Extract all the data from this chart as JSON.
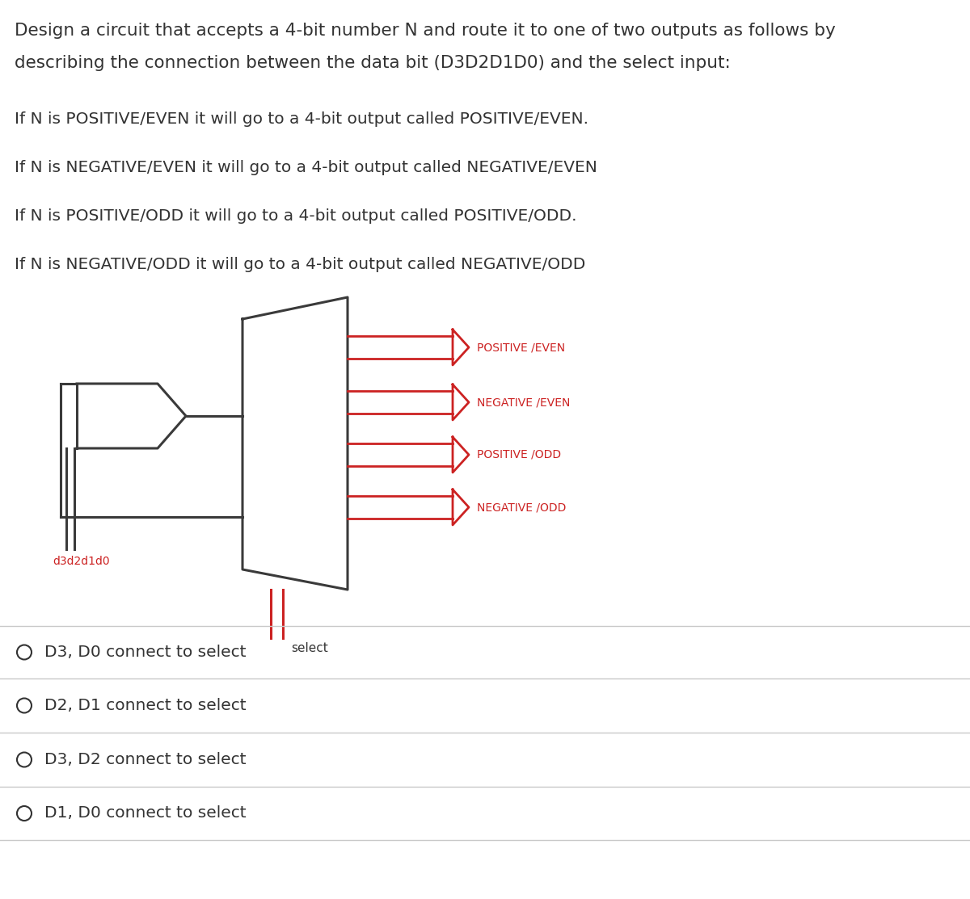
{
  "title_line1": "Design a circuit that accepts a 4-bit number N and route it to one of two outputs as follows by",
  "title_line2": "describing the connection between the data bit (D3D2D1D0) and the select input:",
  "condition_lines": [
    "If N is POSITIVE/EVEN it will go to a 4-bit output called POSITIVE/EVEN.",
    "If N is NEGATIVE/EVEN it will go to a 4-bit output called NEGATIVE/EVEN",
    "If N is POSITIVE/ODD it will go to a 4-bit output called POSITIVE/ODD.",
    "If N is NEGATIVE/ODD it will go to a 4-bit output called NEGATIVE/ODD"
  ],
  "output_labels": [
    "POSITIVE /EVEN",
    "NEGATIVE /EVEN",
    "POSITIVE /ODD",
    "NEGATIVE /ODD"
  ],
  "input_label": "d3d2d1d0",
  "select_label": "select",
  "choices": [
    "D3, D0 connect to select",
    "D2, D1 connect to select",
    "D3, D2 connect to select",
    "D1, D0 connect to select"
  ],
  "circuit_color": "#3a3a3a",
  "red_color": "#cc2222",
  "text_color": "#333333",
  "bg_color": "#ffffff",
  "title_fontsize": 15.5,
  "condition_fontsize": 14.5,
  "choice_fontsize": 14.5
}
